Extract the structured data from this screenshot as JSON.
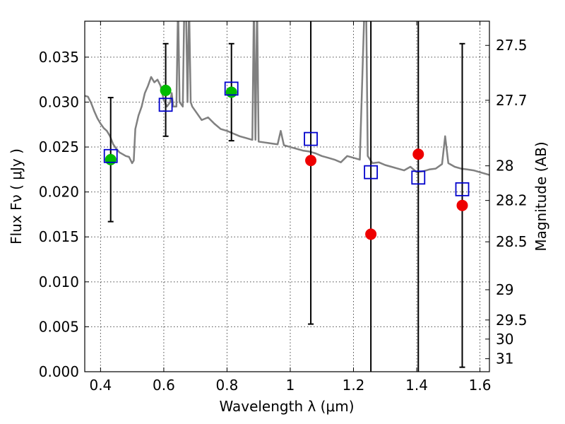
{
  "chart_data": {
    "type": "scatter",
    "title": "",
    "xlabel": "Wavelength  λ (μm)",
    "ylabel": "Flux  Fν  ( μJy )",
    "ylabel_right": "Magnitude (AB)",
    "xlim": [
      0.35,
      1.63
    ],
    "ylim": [
      0.0,
      0.039
    ],
    "x_ticks": [
      0.4,
      0.6,
      0.8,
      1.0,
      1.2,
      1.4,
      1.6
    ],
    "x_tick_labels": [
      "0.4",
      "0.6",
      "0.8",
      "1",
      "1.2",
      "1.4",
      "1.6"
    ],
    "y_ticks": [
      0.0,
      0.005,
      0.01,
      0.015,
      0.02,
      0.025,
      0.03,
      0.035
    ],
    "y_tick_labels": [
      "0.000",
      "0.005",
      "0.010",
      "0.015",
      "0.020",
      "0.025",
      "0.030",
      "0.035"
    ],
    "right_ticks": [
      {
        "mag": 27.5,
        "label": "27.5"
      },
      {
        "mag": 27.7,
        "label": "27.7"
      },
      {
        "mag": 28.0,
        "label": "28"
      },
      {
        "mag": 28.2,
        "label": "28.2"
      },
      {
        "mag": 28.5,
        "label": "28.5"
      },
      {
        "mag": 29.0,
        "label": "29"
      },
      {
        "mag": 29.5,
        "label": "29.5"
      },
      {
        "mag": 30.0,
        "label": "30"
      },
      {
        "mag": 31.0,
        "label": "31"
      }
    ],
    "grid": true,
    "colors": {
      "model": "#808080",
      "detection": "#00bb00",
      "non_detection": "#ee0000",
      "model_flux": "#0000cc",
      "error_bar": "#000000"
    },
    "model_spectrum": [
      [
        0.35,
        0.0307
      ],
      [
        0.36,
        0.0306
      ],
      [
        0.37,
        0.0299
      ],
      [
        0.38,
        0.029
      ],
      [
        0.39,
        0.0282
      ],
      [
        0.4,
        0.0276
      ],
      [
        0.41,
        0.0271
      ],
      [
        0.42,
        0.0268
      ],
      [
        0.43,
        0.0262
      ],
      [
        0.44,
        0.0253
      ],
      [
        0.45,
        0.0248
      ],
      [
        0.46,
        0.0244
      ],
      [
        0.47,
        0.0242
      ],
      [
        0.48,
        0.024
      ],
      [
        0.49,
        0.0239
      ],
      [
        0.5,
        0.0232
      ],
      [
        0.505,
        0.0235
      ],
      [
        0.51,
        0.027
      ],
      [
        0.52,
        0.0285
      ],
      [
        0.53,
        0.0295
      ],
      [
        0.54,
        0.031
      ],
      [
        0.55,
        0.0318
      ],
      [
        0.56,
        0.0328
      ],
      [
        0.57,
        0.0322
      ],
      [
        0.58,
        0.0325
      ],
      [
        0.59,
        0.0318
      ],
      [
        0.6,
        0.0302
      ],
      [
        0.61,
        0.0295
      ],
      [
        0.62,
        0.03
      ],
      [
        0.625,
        0.031
      ],
      [
        0.63,
        0.0295
      ],
      [
        0.64,
        0.0295
      ],
      [
        0.645,
        0.041
      ],
      [
        0.65,
        0.03
      ],
      [
        0.66,
        0.0295
      ],
      [
        0.665,
        0.041
      ],
      [
        0.67,
        0.041
      ],
      [
        0.675,
        0.03
      ],
      [
        0.68,
        0.041
      ],
      [
        0.685,
        0.03
      ],
      [
        0.69,
        0.0295
      ],
      [
        0.7,
        0.029
      ],
      [
        0.72,
        0.028
      ],
      [
        0.74,
        0.0283
      ],
      [
        0.76,
        0.0276
      ],
      [
        0.78,
        0.027
      ],
      [
        0.8,
        0.0268
      ],
      [
        0.82,
        0.0265
      ],
      [
        0.84,
        0.0262
      ],
      [
        0.86,
        0.026
      ],
      [
        0.88,
        0.0258
      ],
      [
        0.885,
        0.041
      ],
      [
        0.89,
        0.0258
      ],
      [
        0.895,
        0.041
      ],
      [
        0.9,
        0.0256
      ],
      [
        0.92,
        0.0255
      ],
      [
        0.94,
        0.0254
      ],
      [
        0.96,
        0.0253
      ],
      [
        0.97,
        0.0268
      ],
      [
        0.98,
        0.0252
      ],
      [
        1.0,
        0.025
      ],
      [
        1.02,
        0.0248
      ],
      [
        1.04,
        0.0246
      ],
      [
        1.06,
        0.0245
      ],
      [
        1.08,
        0.0243
      ],
      [
        1.1,
        0.024
      ],
      [
        1.12,
        0.0238
      ],
      [
        1.14,
        0.0236
      ],
      [
        1.16,
        0.0233
      ],
      [
        1.18,
        0.024
      ],
      [
        1.2,
        0.0238
      ],
      [
        1.22,
        0.0236
      ],
      [
        1.235,
        0.041
      ],
      [
        1.24,
        0.041
      ],
      [
        1.245,
        0.024
      ],
      [
        1.26,
        0.0232
      ],
      [
        1.28,
        0.0233
      ],
      [
        1.3,
        0.023
      ],
      [
        1.32,
        0.0228
      ],
      [
        1.34,
        0.0226
      ],
      [
        1.36,
        0.0224
      ],
      [
        1.38,
        0.0228
      ],
      [
        1.4,
        0.0222
      ],
      [
        1.42,
        0.0223
      ],
      [
        1.44,
        0.0225
      ],
      [
        1.46,
        0.0226
      ],
      [
        1.48,
        0.0231
      ],
      [
        1.49,
        0.0262
      ],
      [
        1.5,
        0.0232
      ],
      [
        1.52,
        0.0228
      ],
      [
        1.54,
        0.0226
      ],
      [
        1.56,
        0.0225
      ],
      [
        1.58,
        0.0224
      ],
      [
        1.6,
        0.0222
      ],
      [
        1.63,
        0.0219
      ]
    ],
    "detections": [
      {
        "x": 0.432,
        "y": 0.0236,
        "err_low": 0.0167,
        "err_high": 0.0305
      },
      {
        "x": 0.606,
        "y": 0.0313,
        "err_low": 0.0262,
        "err_high": 0.0365
      },
      {
        "x": 0.814,
        "y": 0.0311,
        "err_low": 0.0257,
        "err_high": 0.0365
      }
    ],
    "non_detections": [
      {
        "x": 1.065,
        "y": 0.0235,
        "err_low": 0.0053,
        "err_high": 0.041
      },
      {
        "x": 1.255,
        "y": 0.0153,
        "err_low": 0.0,
        "err_high": 0.041
      },
      {
        "x": 1.405,
        "y": 0.0242,
        "err_low": 0.0,
        "err_high": 0.041
      },
      {
        "x": 1.544,
        "y": 0.0185,
        "err_low": 0.0005,
        "err_high": 0.0365
      }
    ],
    "model_photometry": [
      {
        "x": 0.432,
        "y": 0.024
      },
      {
        "x": 0.606,
        "y": 0.0297
      },
      {
        "x": 0.814,
        "y": 0.0315
      },
      {
        "x": 1.065,
        "y": 0.0259
      },
      {
        "x": 1.255,
        "y": 0.0222
      },
      {
        "x": 1.405,
        "y": 0.0216
      },
      {
        "x": 1.544,
        "y": 0.0203
      }
    ]
  }
}
